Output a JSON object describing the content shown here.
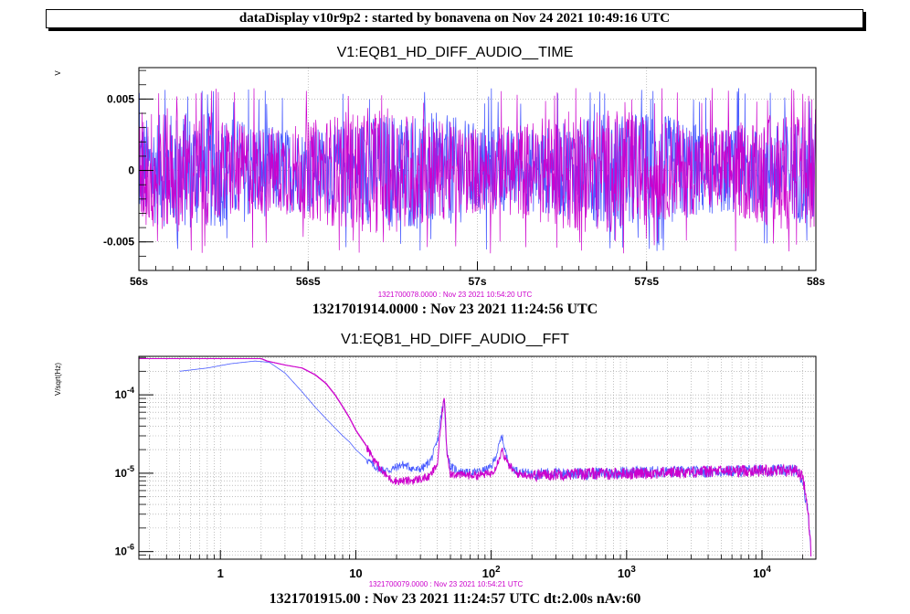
{
  "header": {
    "title": "dataDisplay v10r9p2 : started by bonavena on Nov 24 2021 10:49:16 UTC"
  },
  "colors": {
    "blue": "#4a5cff",
    "magenta": "#cc00cc",
    "frame": "#000000",
    "grid": "#9a9a9a"
  },
  "chart_data": [
    {
      "type": "line",
      "title": "V1:EQB1_HD_DIFF_AUDIO__TIME",
      "ylabel": "V",
      "xlabel": "",
      "x_tick_labels": [
        "56s",
        "56s5",
        "57s",
        "57s5",
        "58s"
      ],
      "y_tick_labels": [
        "0.005",
        "0",
        "-0.005"
      ],
      "xlim": [
        56,
        58
      ],
      "ylim": [
        -0.007,
        0.0072
      ],
      "grid": true,
      "series": [
        {
          "color": "#4a5cff",
          "envelope_amplitude": 0.0042,
          "peak_amplitude": 0.0058
        },
        {
          "color": "#cc00cc",
          "envelope_amplitude": 0.0044,
          "peak_amplitude": 0.0058
        }
      ],
      "reference_time": "1321700078.0000 : Nov 23 2021 10:54:20 UTC",
      "footer": "1321701914.0000 : Nov 23 2021 11:24:56 UTC"
    },
    {
      "type": "line",
      "title": "V1:EQB1_HD_DIFF_AUDIO__FFT",
      "ylabel": "V/sqrt(Hz)",
      "xlabel": "",
      "x_scale": "log",
      "y_scale": "log",
      "x_tick_labels": [
        "1",
        "10",
        "10^2",
        "10^3",
        "10^4"
      ],
      "y_tick_labels": [
        "10^-4",
        "10^-5",
        "10^-6"
      ],
      "xlim": [
        0.25,
        25000
      ],
      "ylim": [
        8e-07,
        0.00031
      ],
      "grid": true,
      "series": [
        {
          "color": "#4a5cff",
          "x": [
            0.5,
            0.8,
            1.2,
            1.8,
            2.3,
            3,
            4,
            5,
            6,
            7,
            8,
            9,
            10,
            12,
            14,
            16,
            18,
            20,
            22,
            25,
            28,
            32,
            36,
            40,
            43,
            45,
            47,
            50,
            60,
            70,
            80,
            90,
            100,
            110,
            120,
            130,
            140,
            160,
            200,
            300,
            500,
            1000,
            3000,
            10000,
            15000,
            18000,
            20000,
            22000,
            23000
          ],
          "y": [
            0.0002,
            0.00022,
            0.00025,
            0.00027,
            0.00026,
            0.00019,
            0.00011,
            7e-05,
            5e-05,
            3.8e-05,
            3e-05,
            2.5e-05,
            2e-05,
            1.5e-05,
            1.2e-05,
            1.1e-05,
            1.1e-05,
            1.2e-05,
            1.3e-05,
            1.2e-05,
            1.1e-05,
            1.2e-05,
            1.5e-05,
            2.5e-05,
            6e-05,
            8.5e-05,
            2e-05,
            1.2e-05,
            1.05e-05,
            1e-05,
            1.05e-05,
            1.1e-05,
            1.2e-05,
            1.8e-05,
            3e-05,
            1.6e-05,
            1.2e-05,
            1.05e-05,
            1e-05,
            1e-05,
            1e-05,
            1.05e-05,
            1.05e-05,
            1.1e-05,
            1.1e-05,
            1.1e-05,
            8e-06,
            3e-06,
            1e-06
          ]
        },
        {
          "color": "#cc00cc",
          "x": [
            0.25,
            0.5,
            1,
            2,
            2.2,
            3,
            4,
            5,
            6,
            7,
            8,
            9,
            10,
            12,
            14,
            16,
            18,
            20,
            25,
            30,
            35,
            40,
            43,
            45,
            47,
            50,
            60,
            80,
            100,
            110,
            120,
            130,
            150,
            200,
            300,
            500,
            1000,
            3000,
            10000,
            15000,
            18000,
            20000,
            22000,
            23000
          ],
          "y": [
            0.00029,
            0.00029,
            0.00029,
            0.00029,
            0.00027,
            0.00024,
            0.00022,
            0.00018,
            0.00014,
            0.0001,
            7e-05,
            5e-05,
            3.5e-05,
            2.2e-05,
            1.4e-05,
            1e-05,
            8.5e-06,
            8e-06,
            8e-06,
            8.5e-06,
            9e-06,
            1.3e-05,
            5e-05,
            0.0001,
            2e-05,
            1e-05,
            9.5e-06,
            9.5e-06,
            1e-05,
            1.3e-05,
            2e-05,
            1.4e-05,
            1e-05,
            9.5e-06,
            9.8e-06,
            1e-05,
            1e-05,
            1.05e-05,
            1.1e-05,
            1.1e-05,
            1.1e-05,
            9e-06,
            3e-06,
            1e-06
          ]
        }
      ],
      "reference_time": "1321700079.0000 : Nov 23 2021 10:54:21 UTC",
      "footer": "1321701915.00 : Nov 23 2021 11:24:57 UTC dt:2.00s nAv:60"
    }
  ]
}
